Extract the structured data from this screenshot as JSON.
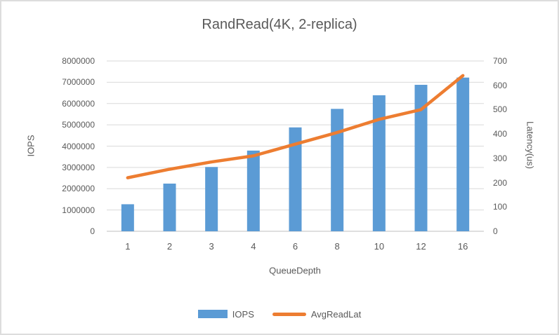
{
  "chart_data": {
    "type": "bar",
    "subtype": "combo-bar-line-dual-axis",
    "title": "RandRead(4K, 2-replica)",
    "categories": [
      "1",
      "2",
      "3",
      "4",
      "6",
      "8",
      "10",
      "12",
      "16"
    ],
    "series": [
      {
        "name": "IOPS",
        "type": "bar",
        "axis": "left",
        "color": "#5B9BD5",
        "values": [
          1270000,
          2240000,
          3020000,
          3790000,
          4880000,
          5750000,
          6390000,
          6880000,
          7220000
        ]
      },
      {
        "name": "AvgReadLat",
        "type": "line",
        "axis": "right",
        "color": "#ED7D31",
        "values": [
          220,
          255,
          285,
          310,
          358,
          406,
          460,
          500,
          640
        ]
      }
    ],
    "xlabel": "QueueDepth",
    "left_axis": {
      "label": "IOPS",
      "min": 0,
      "max": 8000000,
      "step": 1000000,
      "ticks": [
        "8000000",
        "7000000",
        "6000000",
        "5000000",
        "4000000",
        "3000000",
        "2000000",
        "1000000",
        "0"
      ]
    },
    "right_axis": {
      "label": "Latency(us)",
      "min": 0,
      "max": 700,
      "step": 100,
      "ticks": [
        "700",
        "600",
        "500",
        "400",
        "300",
        "200",
        "100",
        "0"
      ]
    },
    "grid": true,
    "legend_position": "bottom",
    "colors": {
      "bar": "#5B9BD5",
      "line": "#ED7D31",
      "grid": "#D9D9D9",
      "axis_line": "#BFBFBF",
      "text": "#595959",
      "background": "#FFFFFF",
      "border": "#DDDDDD"
    }
  }
}
